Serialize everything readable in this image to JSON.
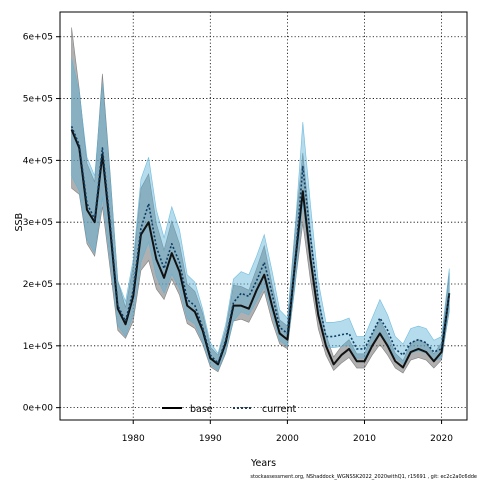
{
  "chart_data": {
    "type": "line",
    "title": "",
    "xlabel": "Years",
    "ylabel": "SSB",
    "xlim": [
      1970.5,
      2023.3
    ],
    "ylim": [
      -20000,
      640000
    ],
    "x_ticks": [
      1980,
      1990,
      2000,
      2010,
      2020
    ],
    "x_tick_labels": [
      "1980",
      "1990",
      "2000",
      "2010",
      "2020"
    ],
    "y_ticks": [
      0,
      100000,
      200000,
      300000,
      400000,
      500000,
      600000
    ],
    "y_tick_labels": [
      "0e+00",
      "1e+05",
      "2e+05",
      "3e+05",
      "4e+05",
      "5e+05",
      "6e+05"
    ],
    "grid": true,
    "legend": {
      "placement": "bottom",
      "entries": [
        "base",
        "current"
      ]
    },
    "footnote": "stockassessment.org, NShaddock_WGNSSK2022_2020withQ1, r15691 , git: ec2c2a0c6dde",
    "x": [
      1972,
      1973,
      1974,
      1975,
      1976,
      1977,
      1978,
      1979,
      1980,
      1981,
      1982,
      1983,
      1984,
      1985,
      1986,
      1987,
      1988,
      1989,
      1990,
      1991,
      1992,
      1993,
      1994,
      1995,
      1996,
      1997,
      1998,
      1999,
      2000,
      2001,
      2002,
      2003,
      2004,
      2005,
      2006,
      2007,
      2008,
      2009,
      2010,
      2011,
      2012,
      2013,
      2014,
      2015,
      2016,
      2017,
      2018,
      2019,
      2020,
      2021
    ],
    "series": [
      {
        "name": "base",
        "color": "#000000",
        "values": [
          450000,
          420000,
          320000,
          300000,
          410000,
          290000,
          160000,
          135000,
          180000,
          280000,
          300000,
          240000,
          210000,
          250000,
          220000,
          165000,
          155000,
          125000,
          80000,
          70000,
          105000,
          165000,
          165000,
          160000,
          190000,
          215000,
          165000,
          120000,
          110000,
          235000,
          350000,
          240000,
          150000,
          100000,
          70000,
          85000,
          95000,
          75000,
          75000,
          100000,
          120000,
          100000,
          75000,
          65000,
          90000,
          95000,
          90000,
          75000,
          90000,
          185000
        ],
        "lower": [
          355000,
          345000,
          265000,
          245000,
          325000,
          225000,
          125000,
          112000,
          140000,
          222000,
          238000,
          192000,
          175000,
          208000,
          182000,
          136000,
          128000,
          103000,
          66000,
          58000,
          88000,
          140000,
          143000,
          138000,
          162000,
          188000,
          140000,
          103000,
          95000,
          200000,
          298000,
          205000,
          128000,
          85000,
          60000,
          72000,
          81000,
          64000,
          64000,
          85000,
          102000,
          85000,
          64000,
          56000,
          77000,
          81000,
          77000,
          64000,
          77000,
          158000
        ],
        "upper": [
          615000,
          515000,
          395000,
          365000,
          540000,
          380000,
          205000,
          162000,
          230000,
          355000,
          378000,
          298000,
          255000,
          302000,
          265000,
          200000,
          188000,
          153000,
          98000,
          85000,
          127000,
          198000,
          196000,
          190000,
          225000,
          262000,
          200000,
          142000,
          132000,
          290000,
          412000,
          285000,
          178000,
          118000,
          82000,
          99000,
          110000,
          87000,
          87000,
          118000,
          142000,
          118000,
          88000,
          76000,
          104000,
          110000,
          104000,
          87000,
          105000,
          218000
        ]
      },
      {
        "name": "current",
        "color": "#000000",
        "dash": "2 2",
        "values": [
          455000,
          425000,
          330000,
          305000,
          420000,
          300000,
          165000,
          140000,
          190000,
          290000,
          330000,
          260000,
          225000,
          265000,
          235000,
          175000,
          165000,
          130000,
          85000,
          72000,
          110000,
          170000,
          185000,
          180000,
          205000,
          235000,
          185000,
          130000,
          120000,
          235000,
          390000,
          275000,
          175000,
          115000,
          115000,
          118000,
          120000,
          95000,
          95000,
          120000,
          145000,
          125000,
          95000,
          85000,
          105000,
          110000,
          105000,
          90000,
          95000,
          185000
        ],
        "lower": [
          375000,
          350000,
          272000,
          250000,
          340000,
          240000,
          133000,
          115000,
          150000,
          235000,
          268000,
          212000,
          185000,
          216000,
          193000,
          144000,
          135000,
          107000,
          70000,
          60000,
          91000,
          140000,
          155000,
          150000,
          172000,
          196000,
          153000,
          108000,
          100000,
          196000,
          330000,
          232000,
          148000,
          97000,
          97000,
          99000,
          101000,
          80000,
          80000,
          101000,
          122000,
          105000,
          80000,
          71000,
          88000,
          92000,
          88000,
          76000,
          80000,
          155000
        ],
        "upper": [
          565000,
          510000,
          405000,
          375000,
          525000,
          375000,
          205000,
          172000,
          240000,
          370000,
          405000,
          320000,
          275000,
          325000,
          288000,
          215000,
          203000,
          160000,
          105000,
          88000,
          135000,
          208000,
          220000,
          215000,
          245000,
          280000,
          222000,
          158000,
          145000,
          290000,
          462000,
          328000,
          205000,
          138000,
          138000,
          140000,
          145000,
          115000,
          115000,
          145000,
          175000,
          150000,
          115000,
          103000,
          128000,
          132000,
          128000,
          109000,
          115000,
          225000
        ],
        "band_color": "#5ab2d8"
      }
    ]
  }
}
